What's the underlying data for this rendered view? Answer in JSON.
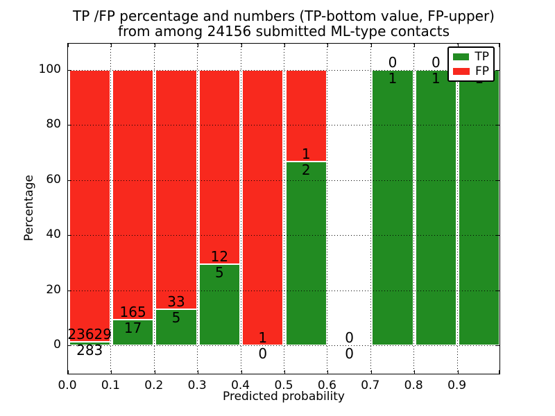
{
  "title": {
    "line1": "TP /FP percentage and numbers (TP-bottom value, FP-upper)",
    "line2": "from among 24156 submitted ML-type contacts"
  },
  "axes": {
    "xlabel": "Predicted probability",
    "ylabel": "Percentage",
    "x_tick_labels": [
      "0.0",
      "0.1",
      "0.2",
      "0.3",
      "0.4",
      "0.5",
      "0.6",
      "0.7",
      "0.8",
      "0.9"
    ],
    "y_tick_labels": [
      "0",
      "20",
      "40",
      "60",
      "80",
      "100"
    ],
    "y_tick_values": [
      0,
      20,
      40,
      60,
      80,
      100
    ]
  },
  "legend": {
    "items": [
      {
        "label": "TP",
        "color": "#228b22"
      },
      {
        "label": "FP",
        "color": "#f8291e"
      }
    ]
  },
  "chart_data": {
    "type": "bar",
    "stacked": true,
    "units": "percent",
    "title": "TP /FP percentage and numbers (TP-bottom value, FP-upper) from among 24156 submitted ML-type contacts",
    "xlabel": "Predicted probability",
    "ylabel": "Percentage",
    "total_contacts": 24156,
    "xlim": [
      0.0,
      1.0
    ],
    "ylim_display": [
      -10.9,
      109.4
    ],
    "grid": "dotted, both axes, drawn over bars horizontally",
    "legend_position": "upper right",
    "categories": [
      "0.0-0.1",
      "0.1-0.2",
      "0.2-0.3",
      "0.3-0.4",
      "0.4-0.5",
      "0.5-0.6",
      "0.6-0.7",
      "0.7-0.8",
      "0.8-0.9",
      "0.9-1.0"
    ],
    "series": [
      {
        "name": "TP",
        "color": "#228b22",
        "counts": [
          283,
          17,
          5,
          5,
          0,
          2,
          0,
          1,
          1,
          1
        ],
        "pct": [
          1.18,
          9.34,
          13.16,
          29.41,
          0,
          66.67,
          null,
          100,
          100,
          100
        ]
      },
      {
        "name": "FP",
        "color": "#f8291e",
        "counts": [
          23629,
          165,
          33,
          12,
          1,
          1,
          0,
          0,
          0,
          0
        ],
        "pct": [
          98.82,
          90.66,
          86.84,
          70.59,
          100,
          33.33,
          null,
          0,
          0,
          0
        ]
      }
    ],
    "empty_bins": [
      "0.6-0.7"
    ],
    "annotation_rule": "FP count printed just above top of TP (green) segment, TP count just below it"
  }
}
